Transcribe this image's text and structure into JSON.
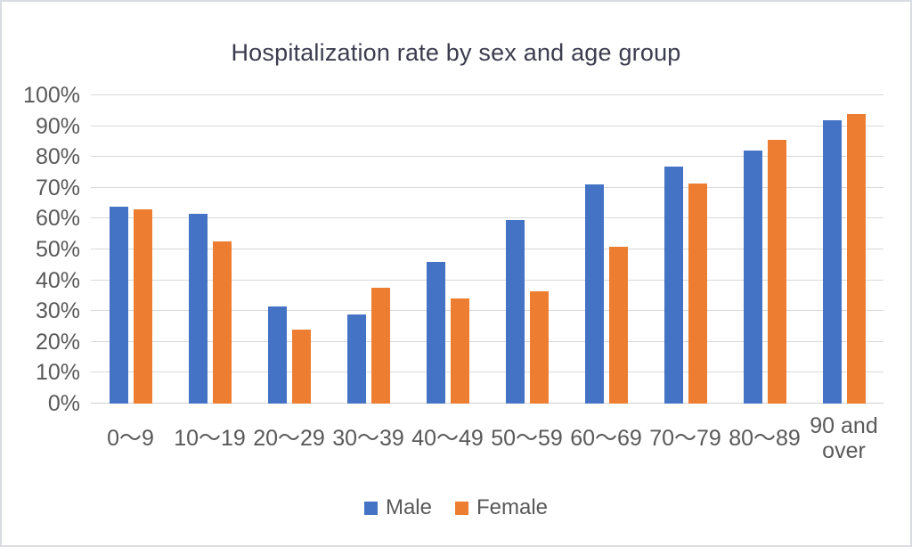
{
  "chart_data": {
    "type": "bar",
    "title": "Hospitalization rate by sex and age group",
    "categories": [
      "0〜9",
      "10〜19",
      "20〜29",
      "30〜39",
      "40〜49",
      "50〜59",
      "60〜69",
      "70〜79",
      "80〜89",
      "90 and over"
    ],
    "series": [
      {
        "name": "Male",
        "color": "#4472C4",
        "values": [
          64,
          61.5,
          31.5,
          29,
          46,
          59.5,
          71,
          77,
          82,
          92
        ]
      },
      {
        "name": "Female",
        "color": "#ED7D31",
        "values": [
          63,
          52.5,
          24,
          37.5,
          34,
          36.5,
          51,
          71.5,
          85.5,
          94
        ]
      }
    ],
    "xlabel": "",
    "ylabel": "",
    "ylim": [
      0,
      100
    ],
    "y_tick_step": 10,
    "y_ticks": [
      "0%",
      "10%",
      "20%",
      "30%",
      "40%",
      "50%",
      "60%",
      "70%",
      "80%",
      "90%",
      "100%"
    ],
    "grid": true,
    "legend_position": "bottom",
    "colors": {
      "grid": "#d9d9d9",
      "axis_line": "#cfcfcf",
      "title_text": "#3b3c4e",
      "label_text": "#595959",
      "background": "#ffffff"
    }
  }
}
